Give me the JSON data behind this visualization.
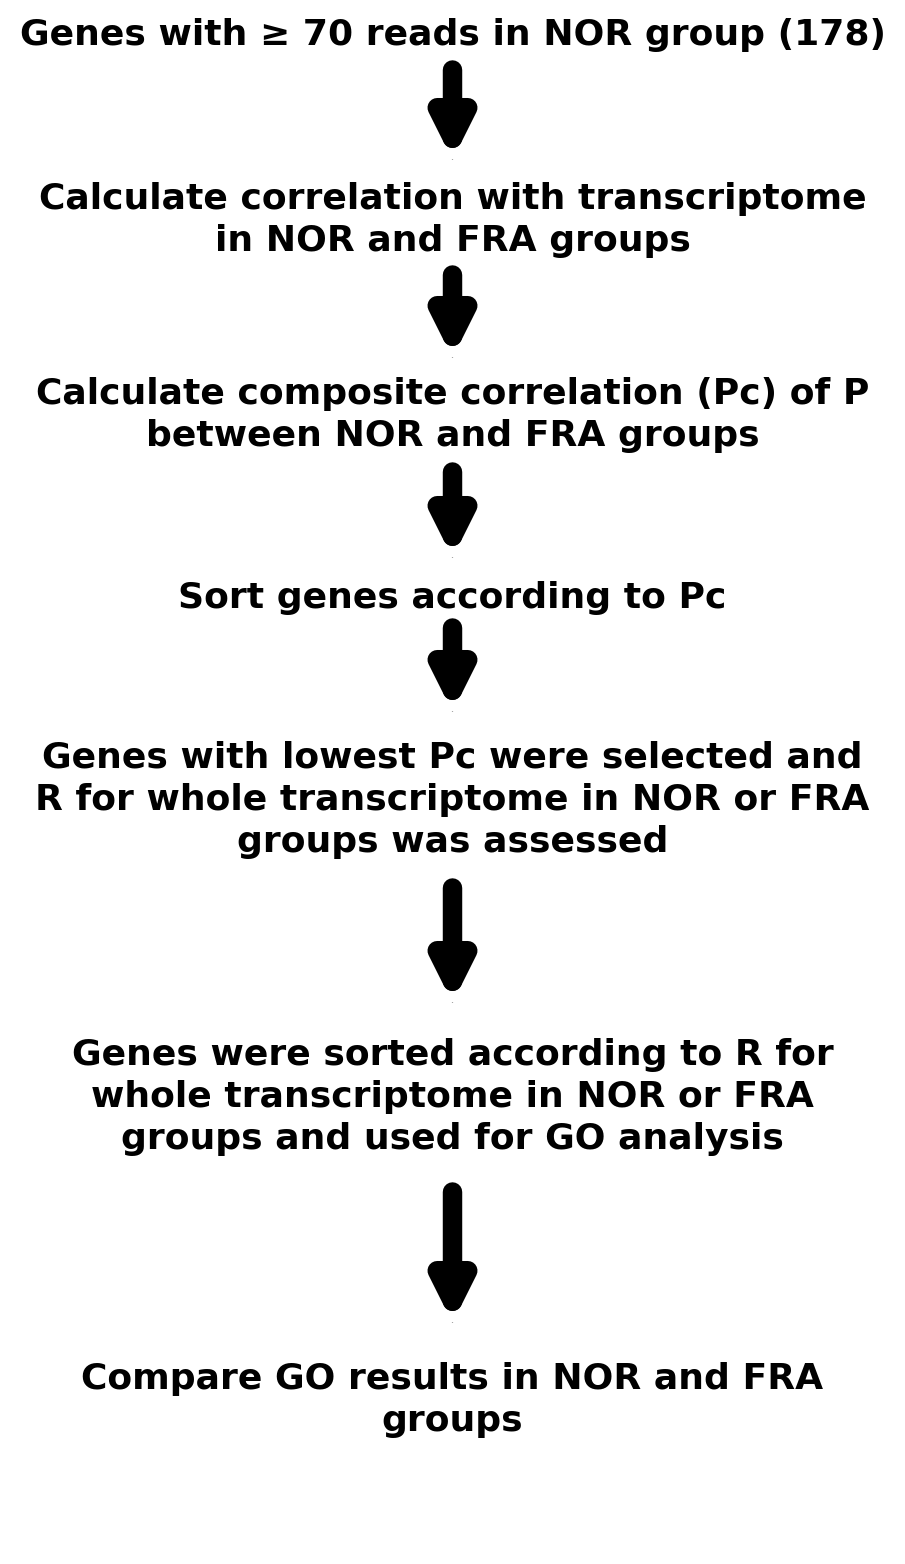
{
  "steps": [
    "Genes with ≥ 70 reads in NOR group (178)",
    "Calculate correlation with transcriptome\nin NOR and FRA groups",
    "Calculate composite correlation (Pc) of P\nbetween NOR and FRA groups",
    "Sort genes according to Pc",
    "Genes with lowest Pc were selected and\nR for whole transcriptome in NOR or FRA\ngroups was assessed",
    "Genes were sorted according to R for\nwhole transcriptome in NOR or FRA\ngroups and used for GO analysis",
    "Compare GO results in NOR and FRA\ngroups"
  ],
  "background_color": "#ffffff",
  "text_color": "#000000",
  "arrow_color": "#000000",
  "font_size": 26,
  "fig_width": 9.05,
  "fig_height": 15.64,
  "dpi": 100
}
